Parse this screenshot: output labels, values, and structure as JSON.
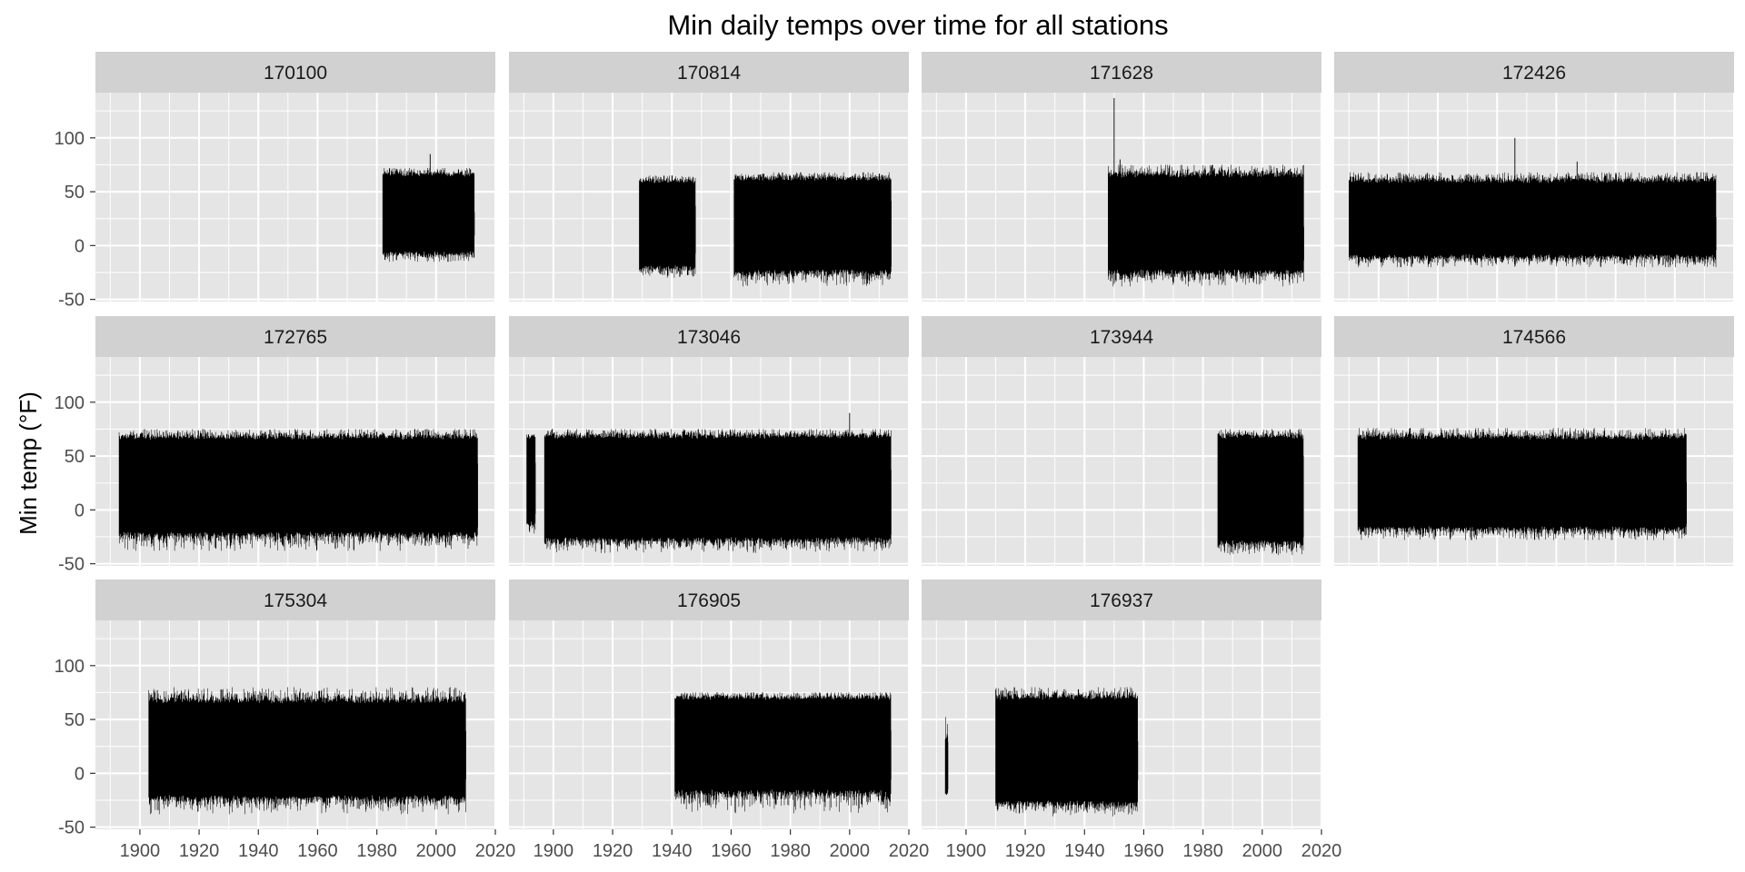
{
  "chart_data": {
    "type": "line",
    "title": "Min daily temps over time for all stations",
    "xlabel": "",
    "ylabel": "Min temp (°F)",
    "xlim": [
      1885,
      2020
    ],
    "ylim": [
      -52,
      142
    ],
    "x_ticks": [
      1900,
      1920,
      1940,
      1960,
      1980,
      2000,
      2020
    ],
    "x_tick_labels": [
      "1900",
      "1920",
      "1940",
      "1960",
      "1980",
      "2000",
      "2020"
    ],
    "y_ticks": [
      -50,
      0,
      50,
      100
    ],
    "y_tick_labels": [
      "-50",
      "0",
      "50",
      "100"
    ],
    "grid": true,
    "layout": "facet wrap, 4 columns x 3 rows",
    "series_color": "#000000",
    "panel_background": "#e5e5e5",
    "strip_background": "#d1d1d1",
    "grid_color": "#ffffff",
    "series": [
      {
        "station": "170100",
        "segments": [
          {
            "start": 1982,
            "end": 2013,
            "min_low": -15,
            "max_high": 72,
            "median_low": -5,
            "median_high": 64
          }
        ],
        "spikes": [
          {
            "x": 1998,
            "y": 85
          }
        ]
      },
      {
        "station": "170814",
        "segments": [
          {
            "start": 1929,
            "end": 1948,
            "min_low": -30,
            "max_high": 65,
            "median_low": -18,
            "median_high": 58
          },
          {
            "start": 1961,
            "end": 2014,
            "min_low": -38,
            "max_high": 68,
            "median_low": -22,
            "median_high": 60
          }
        ],
        "spikes": []
      },
      {
        "station": "171628",
        "segments": [
          {
            "start": 1948,
            "end": 2014,
            "min_low": -38,
            "max_high": 75,
            "median_low": -22,
            "median_high": 63
          }
        ],
        "spikes": [
          {
            "x": 1950,
            "y": 137
          },
          {
            "x": 1952,
            "y": 80
          }
        ]
      },
      {
        "station": "172426",
        "segments": [
          {
            "start": 1890,
            "end": 2014,
            "min_low": -20,
            "max_high": 68,
            "median_low": -8,
            "median_high": 58
          }
        ],
        "spikes": [
          {
            "x": 1946,
            "y": 100
          },
          {
            "x": 1967,
            "y": 78
          }
        ]
      },
      {
        "station": "172765",
        "segments": [
          {
            "start": 1893,
            "end": 2014,
            "min_low": -38,
            "max_high": 75,
            "median_low": -20,
            "median_high": 65
          }
        ],
        "spikes": []
      },
      {
        "station": "173046",
        "segments": [
          {
            "start": 1891,
            "end": 1894,
            "min_low": -22,
            "max_high": 70,
            "median_low": -10,
            "median_high": 65
          },
          {
            "start": 1897,
            "end": 2014,
            "min_low": -40,
            "max_high": 75,
            "median_low": -25,
            "median_high": 66
          }
        ],
        "spikes": [
          {
            "x": 2000,
            "y": 90
          }
        ]
      },
      {
        "station": "173944",
        "segments": [
          {
            "start": 1985,
            "end": 2014,
            "min_low": -42,
            "max_high": 75,
            "median_low": -28,
            "median_high": 66
          }
        ],
        "spikes": []
      },
      {
        "station": "174566",
        "segments": [
          {
            "start": 1893,
            "end": 2004,
            "min_low": -28,
            "max_high": 76,
            "median_low": -15,
            "median_high": 65
          }
        ],
        "spikes": []
      },
      {
        "station": "175304",
        "segments": [
          {
            "start": 1903,
            "end": 2010,
            "min_low": -38,
            "max_high": 80,
            "median_low": -20,
            "median_high": 65
          }
        ],
        "spikes": []
      },
      {
        "station": "176905",
        "segments": [
          {
            "start": 1941,
            "end": 2014,
            "min_low": -38,
            "max_high": 75,
            "median_low": -15,
            "median_high": 68
          }
        ],
        "spikes": []
      },
      {
        "station": "176937",
        "segments": [
          {
            "start": 1893,
            "end": 1894,
            "min_low": -20,
            "max_high": 35,
            "median_low": -15,
            "median_high": 30
          },
          {
            "start": 1910,
            "end": 1958,
            "min_low": -40,
            "max_high": 80,
            "median_low": -25,
            "median_high": 68
          }
        ],
        "spikes": []
      }
    ]
  }
}
